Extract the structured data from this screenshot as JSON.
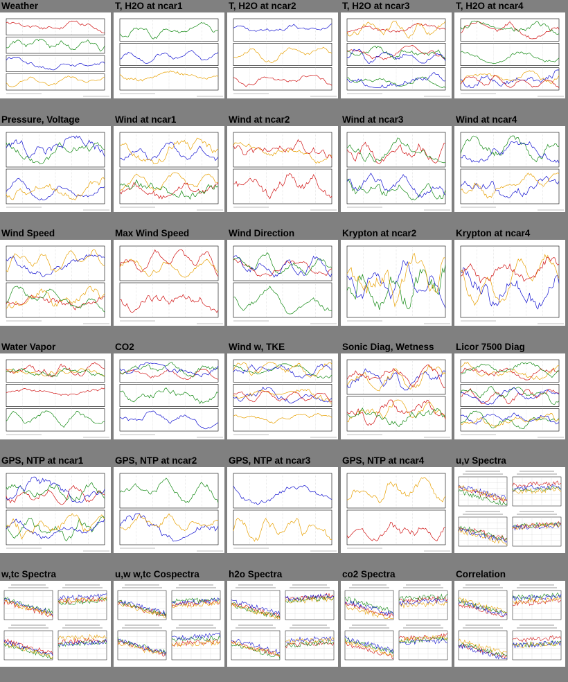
{
  "thumbnails": [
    {
      "title": "Weather",
      "kind": "ts",
      "panels": 4
    },
    {
      "title": "T, H2O at ncar1",
      "kind": "ts",
      "panels": 3
    },
    {
      "title": "T, H2O at ncar2",
      "kind": "ts",
      "panels": 3
    },
    {
      "title": "T, H2O at ncar3",
      "kind": "ts",
      "panels": 3
    },
    {
      "title": "T, H2O at ncar4",
      "kind": "ts",
      "panels": 3
    },
    {
      "title": "Pressure, Voltage",
      "kind": "ts",
      "panels": 2
    },
    {
      "title": "Wind at ncar1",
      "kind": "ts",
      "panels": 2
    },
    {
      "title": "Wind at ncar2",
      "kind": "ts",
      "panels": 2
    },
    {
      "title": "Wind at ncar3",
      "kind": "ts",
      "panels": 2
    },
    {
      "title": "Wind at ncar4",
      "kind": "ts",
      "panels": 2
    },
    {
      "title": "Wind Speed",
      "kind": "ts",
      "panels": 2
    },
    {
      "title": "Max Wind Speed",
      "kind": "ts",
      "panels": 2
    },
    {
      "title": "Wind Direction",
      "kind": "ts",
      "panels": 2
    },
    {
      "title": "Krypton at ncar2",
      "kind": "ts",
      "panels": 1
    },
    {
      "title": "Krypton at ncar4",
      "kind": "ts",
      "panels": 1
    },
    {
      "title": "Water Vapor",
      "kind": "ts",
      "panels": 3
    },
    {
      "title": "CO2",
      "kind": "ts",
      "panels": 3
    },
    {
      "title": "Wind w, TKE",
      "kind": "ts",
      "panels": 3
    },
    {
      "title": "Sonic Diag, Wetness",
      "kind": "ts",
      "panels": 2
    },
    {
      "title": "Licor 7500 Diag",
      "kind": "ts",
      "panels": 3
    },
    {
      "title": "GPS, NTP at ncar1",
      "kind": "ts",
      "panels": 2
    },
    {
      "title": "GPS, NTP at ncar2",
      "kind": "ts",
      "panels": 2
    },
    {
      "title": "GPS, NTP at ncar3",
      "kind": "ts",
      "panels": 2
    },
    {
      "title": "GPS, NTP at ncar4",
      "kind": "ts",
      "panels": 2
    },
    {
      "title": "u,v Spectra",
      "kind": "spectra",
      "panels": 4
    },
    {
      "title": "w,tc Spectra",
      "kind": "spectra",
      "panels": 4
    },
    {
      "title": "u,w w,tc Cospectra",
      "kind": "spectra",
      "panels": 4
    },
    {
      "title": "h2o Spectra",
      "kind": "spectra",
      "panels": 4
    },
    {
      "title": "co2 Spectra",
      "kind": "spectra",
      "panels": 4
    },
    {
      "title": "Correlation",
      "kind": "spectra",
      "panels": 4
    }
  ],
  "colors": {
    "background": "#808080",
    "thumb_bg": "#ffffff",
    "series": [
      "#d01010",
      "#108810",
      "#1010d0",
      "#e8a000",
      "#000000"
    ]
  }
}
